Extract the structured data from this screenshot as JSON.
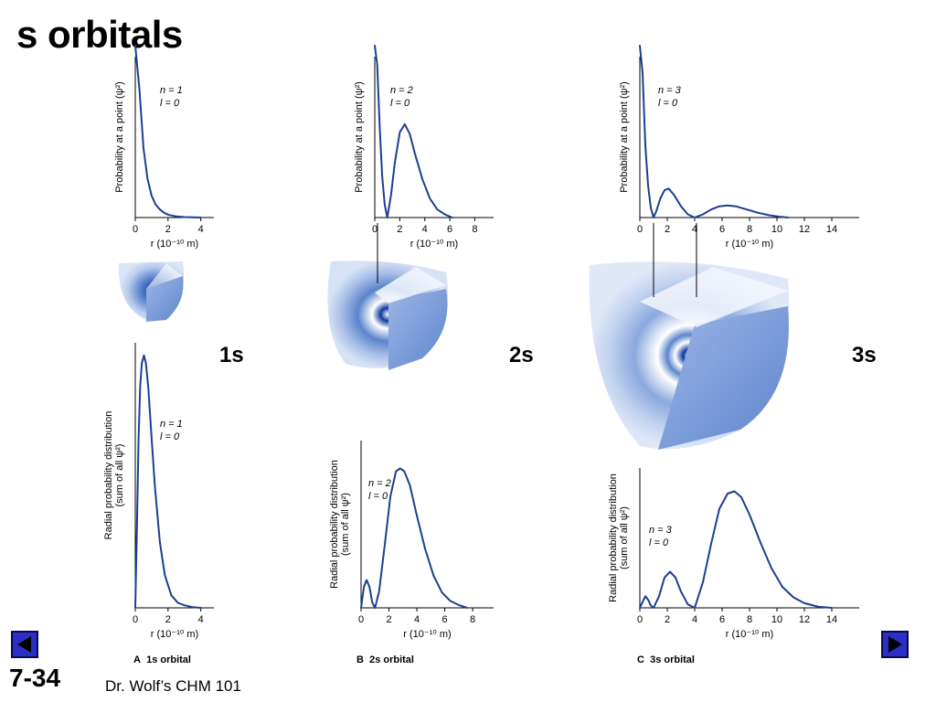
{
  "slide": {
    "title": "s orbitals",
    "number": "7-34",
    "footer": "Dr. Wolf’s CHM 101"
  },
  "orbital_labels": [
    "1s",
    "2s",
    "3s"
  ],
  "captions": [
    {
      "letter": "A",
      "text": "1s orbital"
    },
    {
      "letter": "B",
      "text": "2s orbital"
    },
    {
      "letter": "C",
      "text": "3s orbital"
    }
  ],
  "nav": {
    "prev_icon": "left-arrow-icon",
    "next_icon": "right-arrow-icon"
  },
  "colors": {
    "curve": "#1d3f8f",
    "sphere_light": "#ffffff",
    "sphere_mid": "#5b84cc",
    "sphere_dark": "#0b3a9c",
    "nav": "#2b2fc7"
  },
  "chart_data": [
    {
      "id": "psi2-1s",
      "type": "line",
      "ylabel": "Probability at a point (ψ²)",
      "xlabel": "r  (10⁻¹⁰ m)",
      "annotation": [
        "n = 1",
        "l = 0"
      ],
      "xlim": [
        0,
        4.8
      ],
      "ylim": [
        0,
        1.0
      ],
      "xticks": [
        0,
        2,
        4
      ],
      "xtick_labels": [
        "0",
        "2",
        "4"
      ],
      "x": [
        0,
        0.25,
        0.5,
        0.75,
        1.0,
        1.25,
        1.5,
        1.75,
        2.0,
        2.5,
        3.0,
        3.5,
        4.0
      ],
      "y": [
        1.6,
        0.8,
        0.43,
        0.24,
        0.135,
        0.08,
        0.05,
        0.03,
        0.018,
        0.007,
        0.003,
        0.001,
        0.0
      ]
    },
    {
      "id": "psi2-2s",
      "type": "line",
      "ylabel": "Probability at a point (ψ²)",
      "xlabel": "r  (10⁻¹⁰ m)",
      "annotation": [
        "n = 2",
        "l = 0"
      ],
      "xlim": [
        0,
        9.5
      ],
      "ylim": [
        0,
        1.0
      ],
      "xticks": [
        0,
        2,
        4,
        6,
        8
      ],
      "xtick_labels": [
        "0",
        "2",
        "4",
        "6",
        "8"
      ],
      "x": [
        0,
        0.2,
        0.4,
        0.6,
        0.8,
        1.0,
        1.3,
        1.6,
        2.0,
        2.4,
        2.8,
        3.2,
        3.8,
        4.4,
        5.0,
        5.6,
        6.2
      ],
      "y": [
        1.6,
        0.95,
        0.55,
        0.25,
        0.08,
        0.0,
        0.14,
        0.34,
        0.53,
        0.58,
        0.52,
        0.4,
        0.24,
        0.12,
        0.05,
        0.02,
        0.0
      ]
    },
    {
      "id": "psi2-3s",
      "type": "line",
      "ylabel": "Probability at a point (ψ²)",
      "xlabel": "r  (10⁻¹⁰ m)",
      "annotation": [
        "n = 3",
        "l = 0"
      ],
      "xlim": [
        0,
        16
      ],
      "ylim": [
        0,
        1.0
      ],
      "xticks": [
        0,
        2,
        4,
        6,
        8,
        10,
        12,
        14
      ],
      "xtick_labels": [
        "0",
        "2",
        "4",
        "6",
        "8",
        "10",
        "12",
        "14"
      ],
      "x": [
        0,
        0.2,
        0.4,
        0.6,
        0.8,
        1.0,
        1.2,
        1.5,
        1.8,
        2.1,
        2.5,
        3.0,
        3.5,
        4.0,
        4.6,
        5.2,
        5.8,
        6.4,
        7.0,
        7.8,
        8.6,
        9.4,
        10.2,
        10.8
      ],
      "y": [
        1.6,
        0.9,
        0.45,
        0.2,
        0.06,
        0.0,
        0.04,
        0.12,
        0.17,
        0.18,
        0.14,
        0.07,
        0.02,
        0.0,
        0.02,
        0.05,
        0.07,
        0.075,
        0.07,
        0.05,
        0.03,
        0.015,
        0.005,
        0.0
      ]
    },
    {
      "id": "rpd-1s",
      "type": "line",
      "ylabel": "Radial probability distribution (sum of all ψ²)",
      "xlabel": "r  (10⁻¹⁰ m)",
      "annotation": [
        "n = 1",
        "l = 0"
      ],
      "xlim": [
        0,
        4.8
      ],
      "ylim": [
        0,
        1.05
      ],
      "xticks": [
        0,
        2,
        4
      ],
      "xtick_labels": [
        "0",
        "2",
        "4"
      ],
      "x": [
        0,
        0.1,
        0.2,
        0.3,
        0.4,
        0.53,
        0.65,
        0.8,
        1.0,
        1.2,
        1.5,
        1.8,
        2.2,
        2.6,
        3.0,
        3.5,
        4.0
      ],
      "y": [
        0,
        0.32,
        0.67,
        0.88,
        0.97,
        1.0,
        0.97,
        0.87,
        0.67,
        0.48,
        0.26,
        0.13,
        0.05,
        0.02,
        0.01,
        0.003,
        0.0
      ]
    },
    {
      "id": "rpd-2s",
      "type": "line",
      "ylabel": "Radial probability distribution (sum of all ψ²)",
      "xlabel": "r  (10⁻¹⁰ m)",
      "annotation": [
        "n = 2",
        "l = 0"
      ],
      "xlim": [
        0,
        9.5
      ],
      "ylim": [
        0,
        1.2
      ],
      "xticks": [
        0,
        2,
        4,
        6,
        8
      ],
      "xtick_labels": [
        "0",
        "2",
        "4",
        "6",
        "8"
      ],
      "x": [
        0,
        0.2,
        0.4,
        0.6,
        0.8,
        1.0,
        1.3,
        1.7,
        2.1,
        2.5,
        2.8,
        3.1,
        3.5,
        4.0,
        4.6,
        5.2,
        5.8,
        6.4,
        7.0,
        7.6
      ],
      "y": [
        0,
        0.15,
        0.2,
        0.15,
        0.04,
        0.0,
        0.12,
        0.45,
        0.8,
        0.98,
        1.0,
        0.98,
        0.88,
        0.66,
        0.42,
        0.23,
        0.11,
        0.05,
        0.02,
        0.0
      ]
    },
    {
      "id": "rpd-3s",
      "type": "line",
      "ylabel": "Radial probability distribution (sum of all ψ²)",
      "xlabel": "r  (10⁻¹⁰ m)",
      "annotation": [
        "n = 3",
        "l = 0"
      ],
      "xlim": [
        0,
        16
      ],
      "ylim": [
        0,
        1.2
      ],
      "xticks": [
        0,
        2,
        4,
        6,
        8,
        10,
        12,
        14
      ],
      "xtick_labels": [
        "0",
        "2",
        "4",
        "6",
        "8",
        "10",
        "12",
        "14"
      ],
      "x": [
        0,
        0.2,
        0.4,
        0.6,
        0.8,
        1.0,
        1.4,
        1.8,
        2.2,
        2.6,
        3.0,
        3.5,
        4.0,
        4.6,
        5.2,
        5.8,
        6.4,
        6.9,
        7.4,
        8.0,
        8.8,
        9.6,
        10.4,
        11.2,
        12.0,
        13.0,
        14.0
      ],
      "y": [
        0,
        0.05,
        0.1,
        0.07,
        0.02,
        0.0,
        0.1,
        0.26,
        0.31,
        0.26,
        0.14,
        0.03,
        0.0,
        0.22,
        0.55,
        0.85,
        0.98,
        1.0,
        0.95,
        0.8,
        0.56,
        0.34,
        0.18,
        0.09,
        0.04,
        0.01,
        0.0
      ]
    }
  ]
}
